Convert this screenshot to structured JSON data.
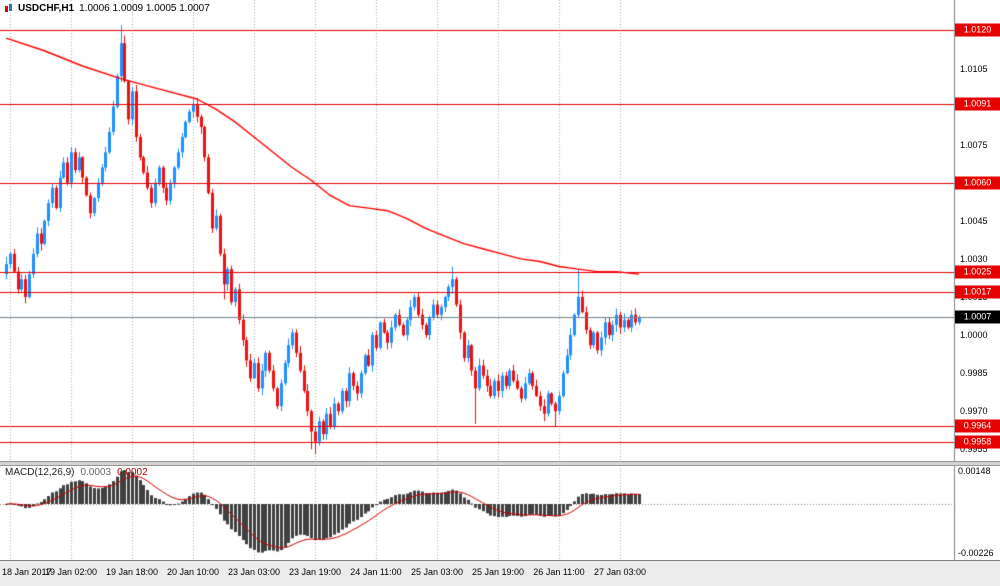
{
  "header": {
    "symbol": "USDCHF,H1",
    "ohlc": "1.0006 1.0009 1.0005 1.0007"
  },
  "colors": {
    "bull": "#1E90FF",
    "bear": "#EE1111",
    "level_line": "#E60000",
    "badge_red": "#E60000",
    "badge_black": "#000000",
    "ma_line": "#FF0000",
    "current_price_line": "#708090",
    "grid": "#ABABAB",
    "macd_histogram": "#404040",
    "macd_signal": "#D00000",
    "axis_text": "#000000"
  },
  "chart_data": {
    "type": "candlestick",
    "title": "USDCHF,H1",
    "ylim": [
      0.995,
      1.0132
    ],
    "grid": "vertical-dashed",
    "legend_position": "none",
    "y_ticks": [
      "1.0105",
      "1.0090",
      "1.0075",
      "1.0060",
      "1.0045",
      "1.0030",
      "1.0015",
      "1.0000",
      "0.9985",
      "0.9970",
      "0.9955"
    ],
    "x_labels": [
      {
        "text": "18 Jan 2017",
        "index": 1
      },
      {
        "text": "19 Jan 02:00",
        "index": 17
      },
      {
        "text": "19 Jan 18:00",
        "index": 33
      },
      {
        "text": "20 Jan 10:00",
        "index": 49
      },
      {
        "text": "23 Jan 03:00",
        "index": 65
      },
      {
        "text": "23 Jan 19:00",
        "index": 81
      },
      {
        "text": "24 Jan 11:00",
        "index": 97
      },
      {
        "text": "25 Jan 03:00",
        "index": 113
      },
      {
        "text": "25 Jan 19:00",
        "index": 129
      },
      {
        "text": "26 Jan 11:00",
        "index": 145
      },
      {
        "text": "27 Jan 03:00",
        "index": 161
      }
    ],
    "first_open": 1.0024,
    "closes": [
      1.0028,
      1.0032,
      1.0025,
      1.0018,
      1.0022,
      1.0015,
      1.0024,
      1.0032,
      1.004,
      1.0036,
      1.0045,
      1.0052,
      1.0058,
      1.005,
      1.0062,
      1.0068,
      1.006,
      1.0072,
      1.0065,
      1.007,
      1.0062,
      1.0055,
      1.0048,
      1.0054,
      1.006,
      1.0066,
      1.0072,
      1.008,
      1.009,
      1.0102,
      1.0115,
      1.01,
      1.0085,
      1.0096,
      1.0078,
      1.007,
      1.0064,
      1.0058,
      1.0052,
      1.006,
      1.0066,
      1.0058,
      1.0053,
      1.006,
      1.0066,
      1.0072,
      1.0078,
      1.0084,
      1.0088,
      1.0091,
      1.0086,
      1.0082,
      1.007,
      1.0056,
      1.0042,
      1.0047,
      1.0032,
      1.002,
      1.0026,
      1.0013,
      1.0018,
      1.0006,
      0.9998,
      0.999,
      0.9983,
      0.9989,
      0.9979,
      0.9986,
      0.9993,
      0.9986,
      0.9979,
      0.9972,
      0.9981,
      0.9989,
      0.9996,
      1.0001,
      0.9993,
      0.9986,
      0.9978,
      0.997,
      0.9962,
      0.9958,
      0.9966,
      0.9961,
      0.9969,
      0.9964,
      0.9973,
      0.997,
      0.9978,
      0.9974,
      0.9985,
      0.998,
      0.9977,
      0.9985,
      0.9992,
      0.9988,
      1.0,
      0.9995,
      1.0005,
      1.0001,
      0.9997,
      1.0003,
      1.0008,
      1.0004,
      1.0,
      1.0006,
      1.0011,
      1.0015,
      1.0008,
      1.0004,
      1.0,
      1.0007,
      1.0012,
      1.0008,
      1.0011,
      1.0015,
      1.0019,
      1.0022,
      1.0012,
      1.0001,
      0.9991,
      0.9996,
      0.9986,
      0.9979,
      0.9988,
      0.9984,
      0.998,
      0.9976,
      0.9982,
      0.9978,
      0.9984,
      0.998,
      0.9986,
      0.9982,
      0.9979,
      0.9975,
      0.9981,
      0.9985,
      0.998,
      0.9976,
      0.9972,
      0.9969,
      0.9977,
      0.9973,
      0.997,
      0.9976,
      0.9985,
      0.9992,
      1.0,
      1.0008,
      1.0015,
      1.0009,
      1.0002,
      0.9996,
      1.0001,
      0.9994,
      0.9999,
      1.0005,
      1.0,
      1.0004,
      1.0008,
      1.0003,
      1.0006,
      1.0003,
      1.0008,
      1.0005,
      1.0007
    ],
    "wick_overrides": {
      "30": {
        "h": 1.0122
      },
      "31": {
        "h": 1.0118
      },
      "57": {
        "l": 1.0014
      },
      "80": {
        "l": 0.9955
      },
      "81": {
        "l": 0.9953
      },
      "117": {
        "h": 1.0027
      },
      "123": {
        "l": 0.9965
      },
      "141": {
        "l": 0.9966
      },
      "144": {
        "l": 0.9964
      },
      "150": {
        "h": 1.0026
      }
    },
    "ma_line": [
      [
        0,
        1.0117
      ],
      [
        10,
        1.0112
      ],
      [
        20,
        1.0106
      ],
      [
        30,
        1.0101
      ],
      [
        40,
        1.0097
      ],
      [
        50,
        1.0093
      ],
      [
        55,
        1.0089
      ],
      [
        60,
        1.0084
      ],
      [
        65,
        1.0078
      ],
      [
        70,
        1.0072
      ],
      [
        75,
        1.0066
      ],
      [
        80,
        1.0061
      ],
      [
        85,
        1.0055
      ],
      [
        90,
        1.0051
      ],
      [
        95,
        1.005
      ],
      [
        100,
        1.0049
      ],
      [
        105,
        1.0046
      ],
      [
        110,
        1.0042
      ],
      [
        115,
        1.0039
      ],
      [
        120,
        1.0036
      ],
      [
        125,
        1.0034
      ],
      [
        130,
        1.0032
      ],
      [
        135,
        1.003
      ],
      [
        140,
        1.0029
      ],
      [
        145,
        1.0027
      ],
      [
        150,
        1.0026
      ],
      [
        155,
        1.0025
      ],
      [
        160,
        1.0025
      ],
      [
        166,
        1.0024
      ]
    ],
    "levels": [
      {
        "price": 1.012,
        "label": "1.0120"
      },
      {
        "price": 1.0091,
        "label": "1.0091"
      },
      {
        "price": 1.006,
        "label": "1.0060"
      },
      {
        "price": 1.0025,
        "label": "1.0025"
      },
      {
        "price": 1.0017,
        "label": "1.0017"
      },
      {
        "price": 0.9964,
        "label": "0.9964"
      },
      {
        "price": 0.9958,
        "label": "0.9958"
      }
    ],
    "current_price": {
      "price": 1.0007,
      "label": "1.0007"
    },
    "macd": {
      "label": "MACD(12,26,9)",
      "main_value": "0.0003",
      "signal_value": "0.0002",
      "fast": 12,
      "slow": 26,
      "signal": 9,
      "scale_top_label": "0.00148",
      "scale_bottom_label": "-0.00226",
      "scale_top_value": 0.00148,
      "scale_bottom_value": -0.00226
    }
  }
}
